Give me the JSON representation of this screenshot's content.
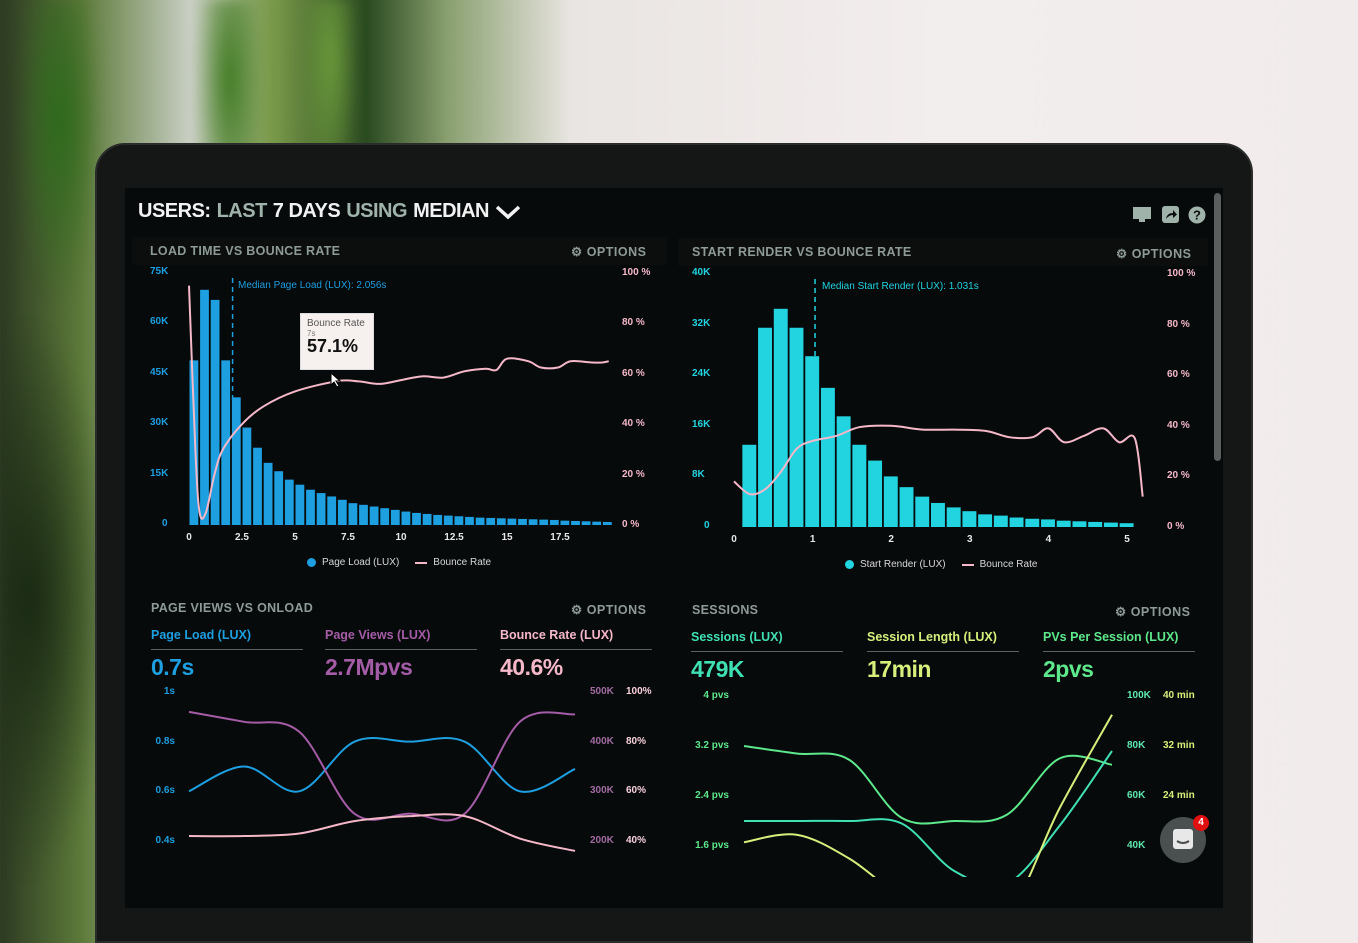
{
  "header": {
    "title_parts": [
      "USERS:",
      "LAST",
      "7 DAYS",
      "USING",
      "MEDIAN"
    ],
    "icons": [
      "monitor-icon",
      "share-icon",
      "help-icon"
    ]
  },
  "colors": {
    "page_load": "#1d9fe0",
    "bounce": "#f5b8c9",
    "page_views": "#a45ca6",
    "start_render": "#22d3e0",
    "sessions": "#3fe0b4",
    "session_length": "#d6f07c",
    "pvs": "#5ee88c"
  },
  "panels": {
    "load_time": {
      "title": "LOAD TIME VS BOUNCE RATE",
      "options": "OPTIONS",
      "median_label": "Median Page Load (LUX): 2.056s",
      "tooltip": {
        "title": "Bounce Rate",
        "sub": "7s",
        "value": "57.1%"
      },
      "legend": [
        "Page Load (LUX)",
        "Bounce Rate"
      ]
    },
    "start_render": {
      "title": "START RENDER VS BOUNCE RATE",
      "options": "OPTIONS",
      "median_label": "Median Start Render (LUX): 1.031s",
      "legend": [
        "Start Render (LUX)",
        "Bounce Rate"
      ]
    },
    "page_views": {
      "title": "PAGE VIEWS VS ONLOAD",
      "options": "OPTIONS",
      "metrics": [
        {
          "label": "Page Load (LUX)",
          "value": "0.7s"
        },
        {
          "label": "Page Views (LUX)",
          "value": "2.7Mpvs"
        },
        {
          "label": "Bounce Rate (LUX)",
          "value": "40.6%"
        }
      ]
    },
    "sessions": {
      "title": "SESSIONS",
      "options": "OPTIONS",
      "metrics": [
        {
          "label": "Sessions (LUX)",
          "value": "479K"
        },
        {
          "label": "Session Length (LUX)",
          "value": "17min"
        },
        {
          "label": "PVs Per Session (LUX)",
          "value": "2pvs"
        }
      ]
    }
  },
  "chat": {
    "badge": "4"
  },
  "chart_data": [
    {
      "type": "bar",
      "title": "LOAD TIME VS BOUNCE RATE",
      "xlim": [
        0,
        20
      ],
      "xticks": [
        "0",
        "2.5",
        "5",
        "7.5",
        "10",
        "12.5",
        "15",
        "17.5"
      ],
      "ylim": [
        0,
        75000
      ],
      "yticks": [
        "0",
        "15K",
        "30K",
        "45K",
        "60K",
        "75K"
      ],
      "y2lim": [
        0,
        100
      ],
      "y2ticks": [
        "0 %",
        "20 %",
        "40 %",
        "60 %",
        "80 %",
        "100 %"
      ],
      "median_x": 2.056,
      "series": [
        {
          "name": "Page Load (LUX)",
          "type": "bar",
          "bin_width": 0.5,
          "values": [
            49000,
            70000,
            67000,
            49000,
            38000,
            29000,
            23000,
            18500,
            16000,
            13500,
            12000,
            10500,
            9500,
            8500,
            7500,
            6500,
            6000,
            5500,
            5000,
            4500,
            4000,
            3600,
            3300,
            3000,
            2800,
            2600,
            2400,
            2200,
            2100,
            2000,
            1900,
            1800,
            1700,
            1600,
            1500,
            1300,
            1200,
            1100,
            1000,
            900
          ]
        },
        {
          "name": "Bounce Rate",
          "type": "line",
          "axis": "y2",
          "points": [
            [
              0,
              95
            ],
            [
              0.3,
              30
            ],
            [
              0.5,
              5
            ],
            [
              0.8,
              5
            ],
            [
              1.2,
              20
            ],
            [
              1.6,
              30
            ],
            [
              2.5,
              40
            ],
            [
              3.5,
              47
            ],
            [
              5,
              53
            ],
            [
              7,
              57.1
            ],
            [
              8,
              57
            ],
            [
              9,
              56
            ],
            [
              10,
              57.5
            ],
            [
              11,
              59
            ],
            [
              12,
              58.5
            ],
            [
              13,
              61
            ],
            [
              14,
              62
            ],
            [
              14.5,
              61.5
            ],
            [
              15,
              66
            ],
            [
              16,
              65
            ],
            [
              16.6,
              62.5
            ],
            [
              17.4,
              62.5
            ],
            [
              18,
              65
            ],
            [
              19,
              64.5
            ],
            [
              19.5,
              64.5
            ],
            [
              19.8,
              65
            ]
          ]
        }
      ]
    },
    {
      "type": "bar",
      "title": "START RENDER VS BOUNCE RATE",
      "xlim": [
        0,
        5
      ],
      "xticks": [
        "0",
        "1",
        "2",
        "3",
        "4",
        "5"
      ],
      "ylim": [
        0,
        40000
      ],
      "yticks": [
        "0",
        "8K",
        "16K",
        "24K",
        "32K",
        "40K"
      ],
      "y2lim": [
        0,
        100
      ],
      "y2ticks": [
        "0 %",
        "20 %",
        "40 %",
        "60 %",
        "80 %",
        "100 %"
      ],
      "median_x": 1.031,
      "series": [
        {
          "name": "Start Render (LUX)",
          "type": "bar",
          "bin_width": 0.2,
          "values": [
            13000,
            31500,
            34500,
            31500,
            27000,
            22000,
            17500,
            13000,
            10500,
            8000,
            6300,
            4800,
            3800,
            3100,
            2500,
            2000,
            1800,
            1500,
            1300,
            1200,
            1000,
            900,
            800,
            700,
            600
          ]
        },
        {
          "name": "Bounce Rate",
          "type": "line",
          "axis": "y2",
          "points": [
            [
              0,
              18
            ],
            [
              0.2,
              13
            ],
            [
              0.4,
              15
            ],
            [
              0.6,
              22
            ],
            [
              0.8,
              31
            ],
            [
              1,
              34
            ],
            [
              1.3,
              36
            ],
            [
              1.6,
              39.5
            ],
            [
              2,
              40
            ],
            [
              2.4,
              38.5
            ],
            [
              2.8,
              38.5
            ],
            [
              3.2,
              38
            ],
            [
              3.5,
              35.5
            ],
            [
              3.8,
              35.5
            ],
            [
              4,
              39
            ],
            [
              4.2,
              33.5
            ],
            [
              4.45,
              36
            ],
            [
              4.7,
              39
            ],
            [
              4.9,
              33.5
            ],
            [
              5.1,
              35
            ],
            [
              5.2,
              12
            ]
          ]
        }
      ]
    },
    {
      "type": "line",
      "title": "PAGE VIEWS VS ONLOAD",
      "ylim": [
        0.4,
        1
      ],
      "yticks": [
        "0.4s",
        "0.6s",
        "0.8s",
        "1s"
      ],
      "y2lim": [
        200000,
        500000
      ],
      "y2ticks": [
        "200K",
        "300K",
        "400K",
        "500K"
      ],
      "y3lim": [
        40,
        100
      ],
      "y3ticks": [
        "40%",
        "60%",
        "80%",
        "100%"
      ],
      "series": [
        {
          "name": "Page Load (LUX)",
          "axis": "y",
          "values": [
            0.6,
            0.7,
            0.6,
            0.8,
            0.8,
            0.8,
            0.6,
            0.69
          ]
        },
        {
          "name": "Page Views (LUX)",
          "axis": "y2",
          "values": [
            460000,
            440000,
            420000,
            255000,
            255000,
            255000,
            440000,
            455000
          ]
        },
        {
          "name": "Bounce Rate (LUX)",
          "axis": "y3",
          "values": [
            42,
            42,
            43,
            48,
            50,
            50,
            41,
            36
          ]
        }
      ]
    },
    {
      "type": "line",
      "title": "SESSIONS",
      "ylim": [
        1.6,
        4
      ],
      "yticks": [
        "1.6 pvs",
        "2.4 pvs",
        "3.2 pvs",
        "4 pvs"
      ],
      "y2lim": [
        40000,
        100000
      ],
      "y2ticks": [
        "40K",
        "60K",
        "80K",
        "100K"
      ],
      "y3lim": [
        16,
        40
      ],
      "y3ticks": [
        "24 min",
        "32 min",
        "40 min"
      ],
      "series": [
        {
          "name": "PVs Per Session (LUX)",
          "axis": "y",
          "values": [
            3.2,
            3.08,
            2.98,
            2.05,
            2.0,
            2.1,
            3.0,
            2.9
          ]
        },
        {
          "name": "Sessions (LUX)",
          "axis": "y2",
          "values": [
            50000,
            50000,
            50000,
            49000,
            30000,
            25000,
            48000,
            78000
          ]
        },
        {
          "name": "Session Length (LUX)",
          "axis": "y3",
          "values": [
            16.6,
            17.8,
            14,
            8,
            6,
            5,
            22,
            37
          ]
        }
      ]
    }
  ]
}
